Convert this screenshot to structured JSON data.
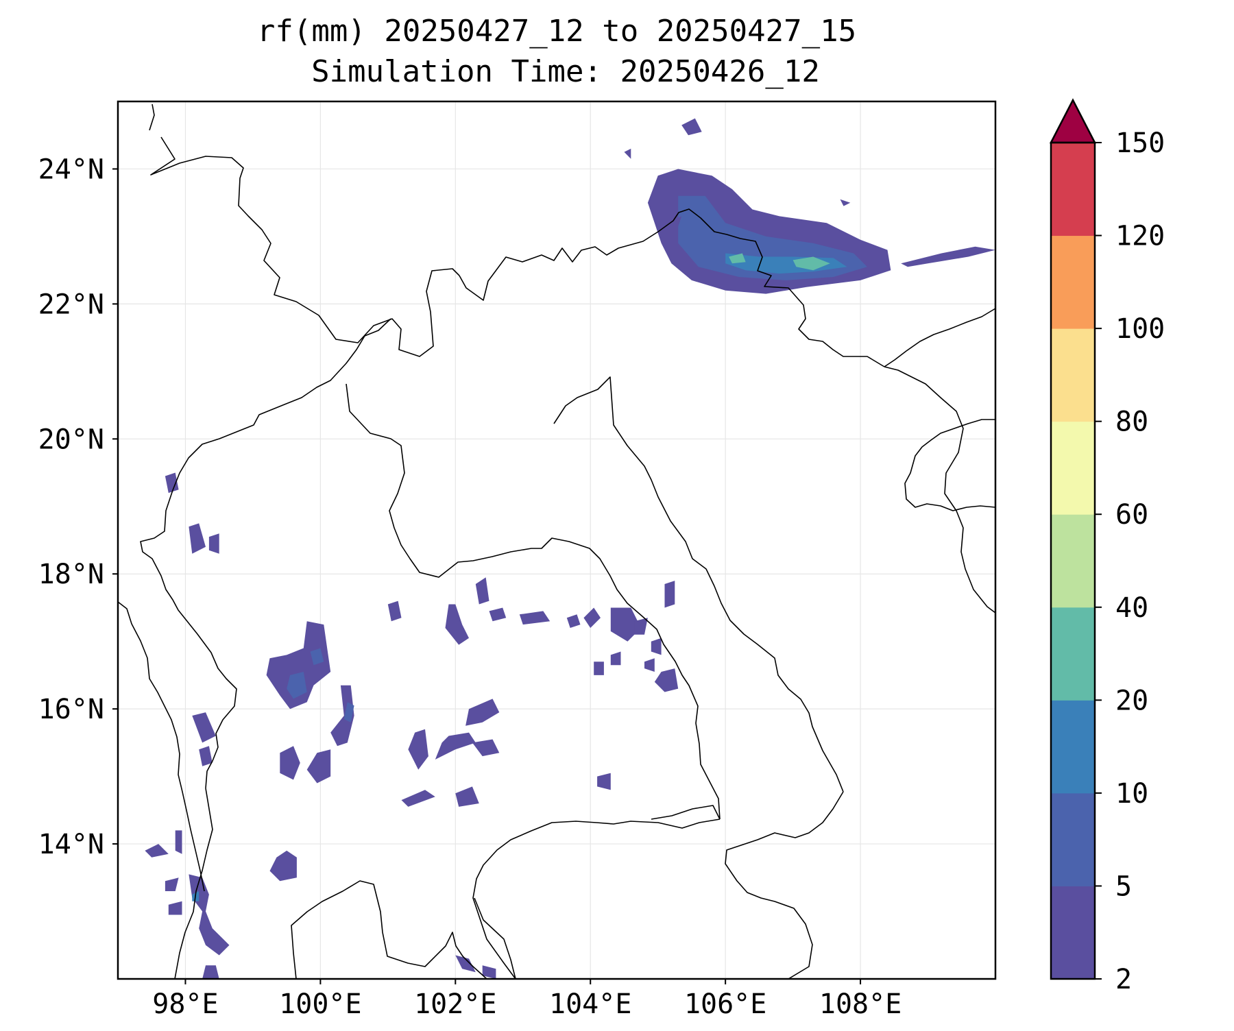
{
  "title": {
    "line1": "rf(mm) 20250427_12 to 20250427_15",
    "line2": "Simulation Time: 20250426_12"
  },
  "map": {
    "lon_range": [
      97,
      110
    ],
    "lat_range": [
      12,
      25
    ],
    "lon_ticks": [
      {
        "value": 98,
        "label": "98°E"
      },
      {
        "value": 100,
        "label": "100°E"
      },
      {
        "value": 102,
        "label": "102°E"
      },
      {
        "value": 104,
        "label": "104°E"
      },
      {
        "value": 106,
        "label": "106°E"
      },
      {
        "value": 108,
        "label": "108°E"
      }
    ],
    "lat_ticks": [
      {
        "value": 24,
        "label": "24°N"
      },
      {
        "value": 22,
        "label": "22°N"
      },
      {
        "value": 20,
        "label": "20°N"
      },
      {
        "value": 18,
        "label": "18°N"
      },
      {
        "value": 16,
        "label": "16°N"
      },
      {
        "value": 14,
        "label": "14°N"
      }
    ],
    "gridlines": true
  },
  "colorbar": {
    "levels": [
      2,
      5,
      10,
      20,
      40,
      60,
      80,
      100,
      120,
      150
    ],
    "labels": [
      "2",
      "5",
      "10",
      "20",
      "40",
      "60",
      "80",
      "100",
      "120",
      "150"
    ],
    "colors": [
      "#5a4f9f",
      "#4b63ad",
      "#3a80b9",
      "#62bba8",
      "#bde29e",
      "#f3f9ad",
      "#fbdf8e",
      "#f99d59",
      "#d53e4f"
    ],
    "extend_color": "#9e0142",
    "extend": "max"
  },
  "rain_areas": [
    {
      "level": 0,
      "pts": [
        [
          105.0,
          23.9
        ],
        [
          105.3,
          24.0
        ],
        [
          105.8,
          23.9
        ],
        [
          106.1,
          23.7
        ],
        [
          106.4,
          23.4
        ],
        [
          106.8,
          23.3
        ],
        [
          107.5,
          23.2
        ],
        [
          108.0,
          22.95
        ],
        [
          108.4,
          22.8
        ],
        [
          108.45,
          22.5
        ],
        [
          108.0,
          22.35
        ],
        [
          107.2,
          22.25
        ],
        [
          106.6,
          22.15
        ],
        [
          106.0,
          22.2
        ],
        [
          105.5,
          22.35
        ],
        [
          105.2,
          22.6
        ],
        [
          105.05,
          22.9
        ],
        [
          104.95,
          23.2
        ],
        [
          104.85,
          23.5
        ]
      ]
    },
    {
      "level": 1,
      "pts": [
        [
          105.3,
          23.6
        ],
        [
          105.7,
          23.6
        ],
        [
          106.0,
          23.2
        ],
        [
          106.6,
          23.0
        ],
        [
          107.3,
          22.9
        ],
        [
          107.9,
          22.75
        ],
        [
          108.1,
          22.55
        ],
        [
          107.6,
          22.4
        ],
        [
          106.9,
          22.35
        ],
        [
          106.2,
          22.4
        ],
        [
          105.6,
          22.55
        ],
        [
          105.3,
          22.9
        ]
      ]
    },
    {
      "level": 2,
      "pts": [
        [
          106.0,
          22.75
        ],
        [
          106.5,
          22.7
        ],
        [
          107.0,
          22.7
        ],
        [
          107.6,
          22.68
        ],
        [
          107.8,
          22.55
        ],
        [
          107.3,
          22.48
        ],
        [
          106.8,
          22.45
        ],
        [
          106.3,
          22.5
        ],
        [
          106.0,
          22.6
        ]
      ]
    },
    {
      "level": 3,
      "pts": [
        [
          107.0,
          22.65
        ],
        [
          107.3,
          22.7
        ],
        [
          107.55,
          22.6
        ],
        [
          107.3,
          22.5
        ],
        [
          107.05,
          22.55
        ]
      ]
    },
    {
      "level": 3,
      "pts": [
        [
          106.05,
          22.7
        ],
        [
          106.25,
          22.75
        ],
        [
          106.3,
          22.62
        ],
        [
          106.1,
          22.6
        ]
      ]
    },
    {
      "level": 0,
      "pts": [
        [
          108.6,
          22.6
        ],
        [
          109.2,
          22.75
        ],
        [
          109.7,
          22.85
        ],
        [
          110.0,
          22.8
        ],
        [
          109.6,
          22.7
        ],
        [
          109.0,
          22.6
        ],
        [
          108.7,
          22.55
        ]
      ]
    },
    {
      "level": 0,
      "pts": [
        [
          105.35,
          24.65
        ],
        [
          105.55,
          24.75
        ],
        [
          105.65,
          24.55
        ],
        [
          105.45,
          24.5
        ]
      ]
    },
    {
      "level": 0,
      "pts": [
        [
          105.25,
          23.25
        ],
        [
          105.35,
          23.3
        ],
        [
          105.3,
          23.15
        ]
      ]
    },
    {
      "level": 0,
      "pts": [
        [
          107.7,
          23.55
        ],
        [
          107.85,
          23.5
        ],
        [
          107.75,
          23.45
        ]
      ]
    },
    {
      "level": 0,
      "pts": [
        [
          104.5,
          24.25
        ],
        [
          104.6,
          24.3
        ],
        [
          104.6,
          24.15
        ]
      ]
    },
    {
      "level": 0,
      "pts": [
        [
          99.8,
          17.3
        ],
        [
          100.05,
          17.25
        ],
        [
          100.1,
          16.9
        ],
        [
          100.15,
          16.55
        ],
        [
          99.9,
          16.35
        ],
        [
          99.8,
          16.1
        ],
        [
          99.55,
          16.0
        ],
        [
          99.4,
          16.2
        ],
        [
          99.2,
          16.5
        ],
        [
          99.25,
          16.75
        ],
        [
          99.5,
          16.8
        ],
        [
          99.75,
          16.9
        ]
      ]
    },
    {
      "level": 1,
      "pts": [
        [
          99.55,
          16.5
        ],
        [
          99.75,
          16.55
        ],
        [
          99.8,
          16.25
        ],
        [
          99.6,
          16.15
        ],
        [
          99.5,
          16.3
        ]
      ]
    },
    {
      "level": 1,
      "pts": [
        [
          99.85,
          16.85
        ],
        [
          100.0,
          16.9
        ],
        [
          100.05,
          16.7
        ],
        [
          99.9,
          16.65
        ]
      ]
    },
    {
      "level": 0,
      "pts": [
        [
          99.4,
          15.35
        ],
        [
          99.6,
          15.45
        ],
        [
          99.7,
          15.2
        ],
        [
          99.6,
          14.95
        ],
        [
          99.4,
          15.05
        ]
      ]
    },
    {
      "level": 0,
      "pts": [
        [
          98.1,
          15.9
        ],
        [
          98.3,
          15.95
        ],
        [
          98.45,
          15.6
        ],
        [
          98.25,
          15.5
        ]
      ]
    },
    {
      "level": 0,
      "pts": [
        [
          98.2,
          15.4
        ],
        [
          98.35,
          15.45
        ],
        [
          98.4,
          15.2
        ],
        [
          98.25,
          15.15
        ]
      ]
    },
    {
      "level": 0,
      "pts": [
        [
          98.05,
          18.7
        ],
        [
          98.2,
          18.75
        ],
        [
          98.3,
          18.4
        ],
        [
          98.1,
          18.3
        ]
      ]
    },
    {
      "level": 0,
      "pts": [
        [
          97.7,
          19.45
        ],
        [
          97.85,
          19.5
        ],
        [
          97.9,
          19.25
        ],
        [
          97.75,
          19.2
        ]
      ]
    },
    {
      "level": 0,
      "pts": [
        [
          98.35,
          18.55
        ],
        [
          98.5,
          18.6
        ],
        [
          98.5,
          18.3
        ],
        [
          98.35,
          18.35
        ]
      ]
    },
    {
      "level": 0,
      "pts": [
        [
          100.3,
          16.35
        ],
        [
          100.45,
          16.35
        ],
        [
          100.5,
          15.9
        ],
        [
          100.4,
          15.5
        ],
        [
          100.25,
          15.45
        ],
        [
          100.15,
          15.65
        ],
        [
          100.35,
          15.9
        ]
      ]
    },
    {
      "level": 1,
      "pts": [
        [
          100.4,
          16.1
        ],
        [
          100.5,
          16.05
        ],
        [
          100.45,
          15.8
        ],
        [
          100.35,
          15.85
        ]
      ]
    },
    {
      "level": 0,
      "pts": [
        [
          99.95,
          15.35
        ],
        [
          100.15,
          15.4
        ],
        [
          100.15,
          15.0
        ],
        [
          99.95,
          14.9
        ],
        [
          99.8,
          15.1
        ]
      ]
    },
    {
      "level": 0,
      "pts": [
        [
          99.5,
          13.9
        ],
        [
          99.65,
          13.8
        ],
        [
          99.65,
          13.5
        ],
        [
          99.4,
          13.45
        ],
        [
          99.25,
          13.6
        ],
        [
          99.35,
          13.8
        ]
      ]
    },
    {
      "level": 0,
      "pts": [
        [
          101.4,
          15.65
        ],
        [
          101.55,
          15.7
        ],
        [
          101.6,
          15.3
        ],
        [
          101.45,
          15.1
        ],
        [
          101.3,
          15.4
        ]
      ]
    },
    {
      "level": 0,
      "pts": [
        [
          101.9,
          15.6
        ],
        [
          102.2,
          15.65
        ],
        [
          102.3,
          15.5
        ],
        [
          102.0,
          15.4
        ],
        [
          101.7,
          15.25
        ],
        [
          101.8,
          15.5
        ]
      ]
    },
    {
      "level": 0,
      "pts": [
        [
          102.2,
          16.0
        ],
        [
          102.55,
          16.15
        ],
        [
          102.65,
          15.95
        ],
        [
          102.4,
          15.8
        ],
        [
          102.15,
          15.75
        ]
      ]
    },
    {
      "level": 0,
      "pts": [
        [
          102.25,
          15.5
        ],
        [
          102.55,
          15.55
        ],
        [
          102.65,
          15.35
        ],
        [
          102.4,
          15.3
        ]
      ]
    },
    {
      "level": 0,
      "pts": [
        [
          101.2,
          14.65
        ],
        [
          101.55,
          14.8
        ],
        [
          101.7,
          14.7
        ],
        [
          101.3,
          14.55
        ]
      ]
    },
    {
      "level": 0,
      "pts": [
        [
          102.0,
          14.75
        ],
        [
          102.25,
          14.85
        ],
        [
          102.35,
          14.6
        ],
        [
          102.05,
          14.55
        ]
      ]
    },
    {
      "level": 0,
      "pts": [
        [
          101.0,
          17.55
        ],
        [
          101.15,
          17.6
        ],
        [
          101.2,
          17.35
        ],
        [
          101.05,
          17.3
        ]
      ]
    },
    {
      "level": 0,
      "pts": [
        [
          101.9,
          17.55
        ],
        [
          102.0,
          17.55
        ],
        [
          102.1,
          17.25
        ],
        [
          102.2,
          17.05
        ],
        [
          102.05,
          16.95
        ],
        [
          101.85,
          17.2
        ]
      ]
    },
    {
      "level": 0,
      "pts": [
        [
          102.3,
          17.85
        ],
        [
          102.45,
          17.95
        ],
        [
          102.5,
          17.6
        ],
        [
          102.35,
          17.55
        ]
      ]
    },
    {
      "level": 0,
      "pts": [
        [
          102.5,
          17.45
        ],
        [
          102.7,
          17.5
        ],
        [
          102.75,
          17.35
        ],
        [
          102.55,
          17.3
        ]
      ]
    },
    {
      "level": 0,
      "pts": [
        [
          102.95,
          17.4
        ],
        [
          103.3,
          17.45
        ],
        [
          103.4,
          17.3
        ],
        [
          103.0,
          17.25
        ]
      ]
    },
    {
      "level": 0,
      "pts": [
        [
          103.65,
          17.35
        ],
        [
          103.8,
          17.4
        ],
        [
          103.85,
          17.25
        ],
        [
          103.7,
          17.2
        ]
      ]
    },
    {
      "level": 0,
      "pts": [
        [
          103.9,
          17.35
        ],
        [
          104.05,
          17.5
        ],
        [
          104.15,
          17.35
        ],
        [
          104.0,
          17.2
        ]
      ]
    },
    {
      "level": 0,
      "pts": [
        [
          104.3,
          17.5
        ],
        [
          104.6,
          17.5
        ],
        [
          104.75,
          17.2
        ],
        [
          104.55,
          17.0
        ],
        [
          104.3,
          17.15
        ]
      ]
    },
    {
      "level": 0,
      "pts": [
        [
          104.65,
          17.3
        ],
        [
          104.85,
          17.35
        ],
        [
          104.8,
          17.1
        ],
        [
          104.65,
          17.1
        ]
      ]
    },
    {
      "level": 0,
      "pts": [
        [
          105.1,
          17.85
        ],
        [
          105.25,
          17.9
        ],
        [
          105.25,
          17.55
        ],
        [
          105.1,
          17.5
        ]
      ]
    },
    {
      "level": 0,
      "pts": [
        [
          104.9,
          17.0
        ],
        [
          105.05,
          17.05
        ],
        [
          105.05,
          16.8
        ],
        [
          104.9,
          16.85
        ]
      ]
    },
    {
      "level": 0,
      "pts": [
        [
          104.8,
          16.7
        ],
        [
          104.95,
          16.75
        ],
        [
          104.95,
          16.55
        ],
        [
          104.8,
          16.6
        ]
      ]
    },
    {
      "level": 0,
      "pts": [
        [
          105.05,
          16.55
        ],
        [
          105.25,
          16.6
        ],
        [
          105.3,
          16.3
        ],
        [
          105.1,
          16.25
        ],
        [
          104.95,
          16.4
        ]
      ]
    },
    {
      "level": 0,
      "pts": [
        [
          104.3,
          16.8
        ],
        [
          104.45,
          16.85
        ],
        [
          104.45,
          16.65
        ],
        [
          104.3,
          16.65
        ]
      ]
    },
    {
      "level": 0,
      "pts": [
        [
          104.05,
          16.7
        ],
        [
          104.2,
          16.7
        ],
        [
          104.2,
          16.5
        ],
        [
          104.05,
          16.5
        ]
      ]
    },
    {
      "level": 0,
      "pts": [
        [
          104.1,
          15.0
        ],
        [
          104.3,
          15.05
        ],
        [
          104.3,
          14.8
        ],
        [
          104.1,
          14.85
        ]
      ]
    },
    {
      "level": 0,
      "pts": [
        [
          97.4,
          13.9
        ],
        [
          97.6,
          14.0
        ],
        [
          97.75,
          13.85
        ],
        [
          97.5,
          13.8
        ]
      ]
    },
    {
      "level": 0,
      "pts": [
        [
          97.85,
          14.2
        ],
        [
          97.95,
          14.2
        ],
        [
          97.95,
          13.85
        ],
        [
          97.85,
          13.9
        ]
      ]
    },
    {
      "level": 0,
      "pts": [
        [
          97.7,
          13.45
        ],
        [
          97.9,
          13.5
        ],
        [
          97.85,
          13.3
        ],
        [
          97.7,
          13.3
        ]
      ]
    },
    {
      "level": 0,
      "pts": [
        [
          98.05,
          13.55
        ],
        [
          98.25,
          13.5
        ],
        [
          98.35,
          13.25
        ],
        [
          98.3,
          13.0
        ],
        [
          98.4,
          12.75
        ],
        [
          98.55,
          12.6
        ],
        [
          98.65,
          12.5
        ],
        [
          98.5,
          12.35
        ],
        [
          98.3,
          12.5
        ],
        [
          98.2,
          12.75
        ],
        [
          98.25,
          13.0
        ],
        [
          98.1,
          13.2
        ]
      ]
    },
    {
      "level": 2,
      "pts": [
        [
          98.1,
          13.25
        ],
        [
          98.2,
          13.3
        ],
        [
          98.2,
          13.15
        ],
        [
          98.1,
          13.15
        ]
      ]
    },
    {
      "level": 0,
      "pts": [
        [
          97.75,
          13.1
        ],
        [
          97.95,
          13.15
        ],
        [
          97.95,
          12.95
        ],
        [
          97.75,
          12.95
        ]
      ]
    },
    {
      "level": 0,
      "pts": [
        [
          98.3,
          12.2
        ],
        [
          98.45,
          12.2
        ],
        [
          98.5,
          12.0
        ],
        [
          98.25,
          12.0
        ]
      ]
    },
    {
      "level": 0,
      "pts": [
        [
          102.0,
          12.35
        ],
        [
          102.2,
          12.3
        ],
        [
          102.3,
          12.1
        ],
        [
          102.1,
          12.15
        ]
      ]
    },
    {
      "level": 0,
      "pts": [
        [
          102.4,
          12.2
        ],
        [
          102.6,
          12.15
        ],
        [
          102.6,
          12.0
        ],
        [
          102.4,
          12.05
        ]
      ]
    }
  ]
}
